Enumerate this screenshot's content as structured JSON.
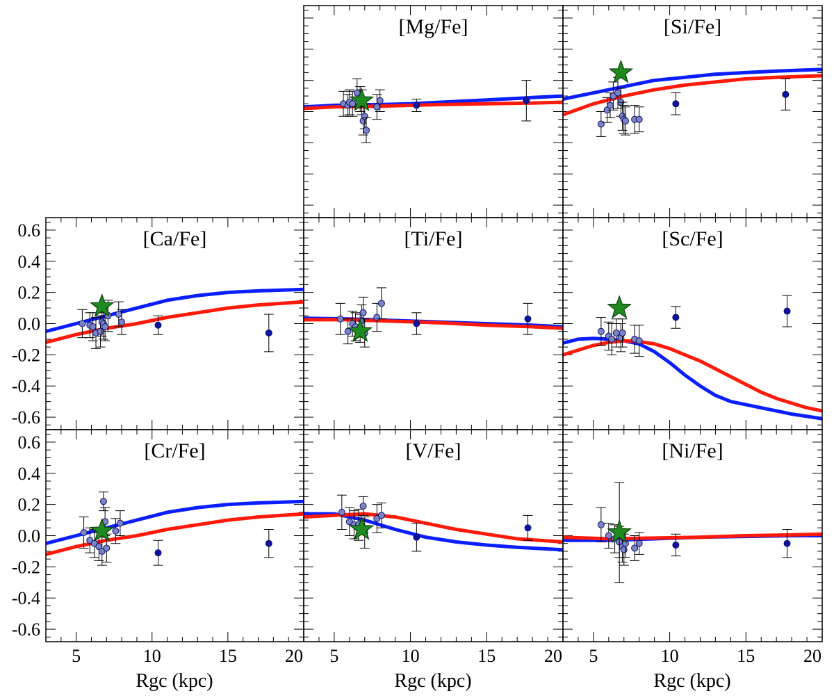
{
  "figure": {
    "xlabel": "Rgc (kpc)",
    "xlim": [
      3,
      20
    ],
    "ylim": [
      -0.68,
      0.68
    ],
    "x_ticks": [
      5,
      10,
      15,
      20
    ],
    "y_ticks": [
      -0.6,
      -0.4,
      -0.2,
      0.0,
      0.2,
      0.4,
      0.6
    ],
    "y_tick_labels": [
      "-0.6",
      "-0.4",
      "-0.2",
      "0.0",
      "0.2",
      "0.4",
      "0.6"
    ],
    "colors": {
      "model_blue": "#0a1eff",
      "model_red": "#ff1a0a",
      "cluster_point": "#7a84c6",
      "field_point": "#0a14a0",
      "star": "#1f8a1f"
    }
  },
  "chart_data": [
    {
      "type": "scatter",
      "title": "[Mg/Fe]",
      "panel": "mg",
      "xlim": [
        3,
        20
      ],
      "ylim": [
        -0.68,
        0.68
      ],
      "series": [
        {
          "kind": "line",
          "color": "blue",
          "x": [
            3,
            5,
            8,
            10,
            12,
            15,
            18,
            20
          ],
          "y": [
            0.03,
            0.04,
            0.045,
            0.05,
            0.06,
            0.075,
            0.09,
            0.1
          ]
        },
        {
          "kind": "line",
          "color": "red",
          "x": [
            3,
            5,
            8,
            10,
            12,
            15,
            18,
            20
          ],
          "y": [
            0.02,
            0.03,
            0.035,
            0.04,
            0.045,
            0.05,
            0.055,
            0.06
          ]
        },
        {
          "kind": "cluster_points",
          "x": [
            5.6,
            5.9,
            6.0,
            6.2,
            6.5,
            6.7,
            6.8,
            6.9,
            7.0,
            7.1,
            7.8,
            8.0
          ],
          "y": [
            0.05,
            0.04,
            0.06,
            0.05,
            0.12,
            0.08,
            0.06,
            -0.06,
            -0.03,
            -0.12,
            0.03,
            0.07
          ],
          "err": [
            0.08,
            0.07,
            0.08,
            0.08,
            0.09,
            0.08,
            0.08,
            0.09,
            0.08,
            0.08,
            0.08,
            0.07
          ]
        },
        {
          "kind": "field_points",
          "x": [
            10.4,
            17.6
          ],
          "y": [
            0.04,
            0.07
          ],
          "err": [
            0.04,
            0.13
          ]
        },
        {
          "kind": "star",
          "x": 6.8,
          "y": 0.07
        }
      ]
    },
    {
      "type": "scatter",
      "title": "[Si/Fe]",
      "panel": "si",
      "xlim": [
        3,
        20
      ],
      "ylim": [
        -0.68,
        0.68
      ],
      "series": [
        {
          "kind": "line",
          "color": "blue",
          "x": [
            3,
            5,
            7,
            9,
            11,
            13,
            15,
            17,
            20
          ],
          "y": [
            0.08,
            0.12,
            0.16,
            0.2,
            0.22,
            0.24,
            0.25,
            0.26,
            0.27
          ]
        },
        {
          "kind": "line",
          "color": "red",
          "x": [
            3,
            5,
            7,
            9,
            11,
            13,
            15,
            17,
            20
          ],
          "y": [
            -0.02,
            0.05,
            0.1,
            0.14,
            0.17,
            0.19,
            0.21,
            0.22,
            0.23
          ]
        },
        {
          "kind": "cluster_points",
          "x": [
            5.5,
            5.9,
            6.1,
            6.3,
            6.6,
            6.8,
            6.9,
            7.0,
            7.1,
            7.7,
            8.0
          ],
          "y": [
            -0.08,
            0.01,
            0.04,
            0.1,
            0.12,
            0.06,
            -0.03,
            -0.05,
            -0.06,
            -0.05,
            -0.05
          ],
          "err": [
            0.08,
            0.08,
            0.08,
            0.09,
            0.1,
            0.09,
            0.09,
            0.09,
            0.09,
            0.09,
            0.08
          ]
        },
        {
          "kind": "field_points",
          "x": [
            10.4,
            17.6
          ],
          "y": [
            0.05,
            0.11
          ],
          "err": [
            0.07,
            0.1
          ]
        },
        {
          "kind": "star",
          "x": 6.8,
          "y": 0.25
        }
      ]
    },
    {
      "type": "scatter",
      "title": "[Ca/Fe]",
      "panel": "ca",
      "xlim": [
        3,
        20
      ],
      "ylim": [
        -0.68,
        0.68
      ],
      "series": [
        {
          "kind": "line",
          "color": "blue",
          "x": [
            3,
            5,
            7,
            9,
            11,
            13,
            15,
            17,
            20
          ],
          "y": [
            -0.05,
            0.0,
            0.05,
            0.1,
            0.15,
            0.18,
            0.2,
            0.21,
            0.22
          ]
        },
        {
          "kind": "line",
          "color": "red",
          "x": [
            3,
            5,
            7,
            9,
            11,
            13,
            15,
            17,
            20
          ],
          "y": [
            -0.12,
            -0.07,
            -0.03,
            0.0,
            0.04,
            0.07,
            0.1,
            0.12,
            0.14
          ]
        },
        {
          "kind": "cluster_points",
          "x": [
            5.4,
            5.9,
            6.1,
            6.3,
            6.6,
            6.7,
            6.8,
            6.9,
            7.1,
            7.8,
            8.0
          ],
          "y": [
            0.0,
            -0.01,
            -0.02,
            -0.06,
            -0.05,
            0.01,
            0.0,
            -0.02,
            0.05,
            0.06,
            0.01
          ],
          "err": [
            0.09,
            0.08,
            0.09,
            0.1,
            0.1,
            0.09,
            0.1,
            0.09,
            0.1,
            0.08,
            0.08
          ]
        },
        {
          "kind": "field_points",
          "x": [
            10.4,
            17.7
          ],
          "y": [
            -0.01,
            -0.06
          ],
          "err": [
            0.06,
            0.12
          ]
        },
        {
          "kind": "star",
          "x": 6.7,
          "y": 0.11
        }
      ]
    },
    {
      "type": "scatter",
      "title": "[Ti/Fe]",
      "panel": "ti",
      "xlim": [
        3,
        20
      ],
      "ylim": [
        -0.68,
        0.68
      ],
      "series": [
        {
          "kind": "line",
          "color": "blue",
          "x": [
            3,
            6,
            9,
            12,
            15,
            18,
            20
          ],
          "y": [
            0.035,
            0.03,
            0.02,
            0.01,
            0.0,
            -0.01,
            -0.02
          ]
        },
        {
          "kind": "line",
          "color": "red",
          "x": [
            3,
            6,
            9,
            12,
            15,
            18,
            20
          ],
          "y": [
            0.025,
            0.025,
            0.015,
            0.005,
            -0.01,
            -0.02,
            -0.03
          ]
        },
        {
          "kind": "cluster_points",
          "x": [
            5.4,
            5.9,
            6.2,
            6.4,
            6.7,
            6.8,
            6.9,
            7.0,
            7.8,
            8.1
          ],
          "y": [
            0.03,
            -0.05,
            0.0,
            -0.02,
            -0.03,
            0.02,
            0.07,
            -0.06,
            0.04,
            0.13
          ],
          "err": [
            0.1,
            0.08,
            0.08,
            0.09,
            0.09,
            0.1,
            0.1,
            0.09,
            0.09,
            0.1
          ]
        },
        {
          "kind": "field_points",
          "x": [
            10.4,
            17.7
          ],
          "y": [
            0.0,
            0.03
          ],
          "err": [
            0.07,
            0.1
          ]
        },
        {
          "kind": "star",
          "x": 6.7,
          "y": -0.05
        }
      ]
    },
    {
      "type": "scatter",
      "title": "[Sc/Fe]",
      "panel": "sc",
      "xlim": [
        3,
        20
      ],
      "ylim": [
        -0.68,
        0.68
      ],
      "series": [
        {
          "kind": "line",
          "color": "blue",
          "x": [
            3,
            4,
            5,
            6,
            7,
            8,
            9,
            10,
            11,
            12,
            13,
            14,
            15,
            16,
            17,
            18,
            19,
            20
          ],
          "y": [
            -0.125,
            -0.1,
            -0.095,
            -0.1,
            -0.11,
            -0.13,
            -0.18,
            -0.25,
            -0.33,
            -0.4,
            -0.46,
            -0.5,
            -0.52,
            -0.54,
            -0.56,
            -0.58,
            -0.595,
            -0.61
          ]
        },
        {
          "kind": "line",
          "color": "red",
          "x": [
            3,
            4,
            5,
            6,
            7,
            8,
            9,
            10,
            11,
            12,
            13,
            14,
            15,
            16,
            17,
            18,
            19,
            20
          ],
          "y": [
            -0.2,
            -0.17,
            -0.14,
            -0.12,
            -0.11,
            -0.115,
            -0.13,
            -0.16,
            -0.2,
            -0.24,
            -0.29,
            -0.34,
            -0.39,
            -0.44,
            -0.48,
            -0.51,
            -0.54,
            -0.56
          ]
        },
        {
          "kind": "cluster_points",
          "x": [
            5.5,
            6.0,
            6.2,
            6.5,
            6.8,
            6.9,
            7.7,
            8.0
          ],
          "y": [
            -0.05,
            -0.08,
            -0.1,
            -0.06,
            -0.09,
            -0.06,
            -0.1,
            -0.11
          ],
          "err": [
            0.09,
            0.09,
            0.1,
            0.09,
            0.09,
            0.09,
            0.09,
            0.1
          ]
        },
        {
          "kind": "field_points",
          "x": [
            10.4,
            17.7
          ],
          "y": [
            0.04,
            0.08
          ],
          "err": [
            0.07,
            0.1
          ]
        },
        {
          "kind": "star",
          "x": 6.7,
          "y": 0.1
        }
      ]
    },
    {
      "type": "scatter",
      "title": "[Cr/Fe]",
      "panel": "cr",
      "xlim": [
        3,
        20
      ],
      "ylim": [
        -0.68,
        0.68
      ],
      "series": [
        {
          "kind": "line",
          "color": "blue",
          "x": [
            3,
            5,
            7,
            9,
            11,
            13,
            15,
            17,
            20
          ],
          "y": [
            -0.05,
            0.0,
            0.05,
            0.1,
            0.15,
            0.18,
            0.2,
            0.21,
            0.22
          ]
        },
        {
          "kind": "line",
          "color": "red",
          "x": [
            3,
            5,
            7,
            9,
            11,
            13,
            15,
            17,
            20
          ],
          "y": [
            -0.12,
            -0.07,
            -0.03,
            0.0,
            0.04,
            0.07,
            0.1,
            0.12,
            0.14
          ]
        },
        {
          "kind": "cluster_points",
          "x": [
            5.5,
            5.9,
            6.2,
            6.5,
            6.7,
            6.8,
            6.9,
            7.0,
            7.6,
            7.9
          ],
          "y": [
            0.02,
            -0.03,
            -0.05,
            -0.07,
            -0.1,
            0.22,
            0.09,
            -0.08,
            0.03,
            0.08
          ],
          "err": [
            0.1,
            0.08,
            0.09,
            0.09,
            0.09,
            0.06,
            0.09,
            0.09,
            0.08,
            0.08
          ]
        },
        {
          "kind": "field_points",
          "x": [
            10.4,
            17.7
          ],
          "y": [
            -0.11,
            -0.05
          ],
          "err": [
            0.08,
            0.09
          ]
        },
        {
          "kind": "star",
          "x": 6.7,
          "y": 0.03
        }
      ]
    },
    {
      "type": "scatter",
      "title": "[V/Fe]",
      "panel": "v",
      "xlim": [
        3,
        20
      ],
      "ylim": [
        -0.68,
        0.68
      ],
      "series": [
        {
          "kind": "line",
          "color": "blue",
          "x": [
            3,
            5,
            7,
            9,
            11,
            13,
            15,
            17,
            20
          ],
          "y": [
            0.14,
            0.14,
            0.1,
            0.04,
            -0.01,
            -0.04,
            -0.06,
            -0.075,
            -0.09
          ]
        },
        {
          "kind": "line",
          "color": "red",
          "x": [
            3,
            5,
            7,
            9,
            11,
            13,
            15,
            17,
            20
          ],
          "y": [
            0.12,
            0.13,
            0.14,
            0.12,
            0.08,
            0.04,
            0.01,
            -0.02,
            -0.04
          ]
        },
        {
          "kind": "cluster_points",
          "x": [
            5.5,
            6.0,
            6.3,
            6.6,
            6.9,
            7.0,
            7.8,
            8.1
          ],
          "y": [
            0.15,
            0.09,
            0.07,
            0.07,
            0.19,
            0.02,
            0.11,
            0.13
          ],
          "err": [
            0.11,
            0.09,
            0.09,
            0.1,
            0.06,
            0.1,
            0.09,
            0.08
          ]
        },
        {
          "kind": "field_points",
          "x": [
            10.4,
            17.7
          ],
          "y": [
            -0.01,
            0.05
          ],
          "err": [
            0.09,
            0.08
          ]
        },
        {
          "kind": "star",
          "x": 6.8,
          "y": 0.04
        }
      ]
    },
    {
      "type": "scatter",
      "title": "[Ni/Fe]",
      "panel": "ni",
      "xlim": [
        3,
        20
      ],
      "ylim": [
        -0.68,
        0.68
      ],
      "series": [
        {
          "kind": "line",
          "color": "blue",
          "x": [
            3,
            6,
            9,
            12,
            15,
            18,
            20
          ],
          "y": [
            -0.03,
            -0.03,
            -0.02,
            -0.01,
            -0.005,
            0.0,
            0.0
          ]
        },
        {
          "kind": "line",
          "color": "red",
          "x": [
            3,
            6,
            9,
            12,
            15,
            18,
            20
          ],
          "y": [
            -0.01,
            -0.02,
            -0.015,
            -0.01,
            0.0,
            0.005,
            0.01
          ]
        },
        {
          "kind": "cluster_points",
          "x": [
            5.5,
            6.0,
            6.4,
            6.7,
            6.9,
            7.0,
            7.1,
            7.7,
            8.0
          ],
          "y": [
            0.07,
            0.0,
            -0.02,
            -0.04,
            -0.07,
            -0.09,
            -0.05,
            -0.08,
            -0.05
          ],
          "err": [
            0.11,
            0.08,
            0.09,
            0.1,
            0.1,
            0.1,
            0.09,
            0.08,
            0.07
          ]
        },
        {
          "kind": "field_points",
          "x": [
            10.4,
            17.7
          ],
          "y": [
            -0.06,
            -0.05
          ],
          "err": [
            0.07,
            0.09
          ]
        },
        {
          "kind": "star",
          "x": 6.7,
          "y": 0.02,
          "err": 0.32
        }
      ]
    }
  ]
}
